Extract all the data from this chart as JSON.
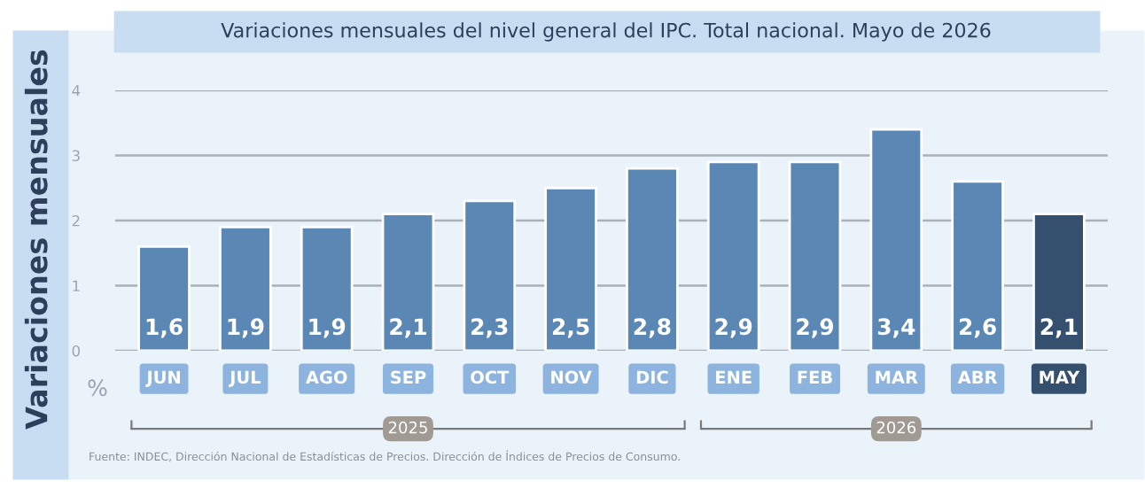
{
  "chart_data": {
    "type": "bar",
    "title": "Variaciones mensuales del nivel general del IPC. Total nacional. Mayo de 2026",
    "ylabel": "Variaciones mensuales",
    "categories": [
      "JUN",
      "JUL",
      "AGO",
      "SEP",
      "OCT",
      "NOV",
      "DIC",
      "ENE",
      "FEB",
      "MAR",
      "ABR",
      "MAY"
    ],
    "values": [
      1.6,
      1.9,
      1.9,
      2.1,
      2.3,
      2.5,
      2.8,
      2.9,
      2.9,
      3.4,
      2.6,
      2.1
    ],
    "value_labels": [
      "1,6",
      "1,9",
      "1,9",
      "2,1",
      "2,3",
      "2,5",
      "2,8",
      "2,9",
      "2,9",
      "3,4",
      "2,6",
      "2,1"
    ],
    "colors": [
      "#5b87b5",
      "#5b87b5",
      "#5b87b5",
      "#5b87b5",
      "#5b87b5",
      "#5b87b5",
      "#5b87b5",
      "#5b87b5",
      "#5b87b5",
      "#5b87b5",
      "#5b87b5",
      "#34506e"
    ],
    "ylim": [
      0,
      4
    ],
    "yticks": [
      0,
      1,
      2,
      3,
      4
    ],
    "grid": "y",
    "annotations": [
      "%",
      "2025",
      "2026",
      "Fuente: INDEC, Dirección Nacional de Estadísticas de Precios. Dirección de Índices de Precios de Consumo."
    ]
  }
}
